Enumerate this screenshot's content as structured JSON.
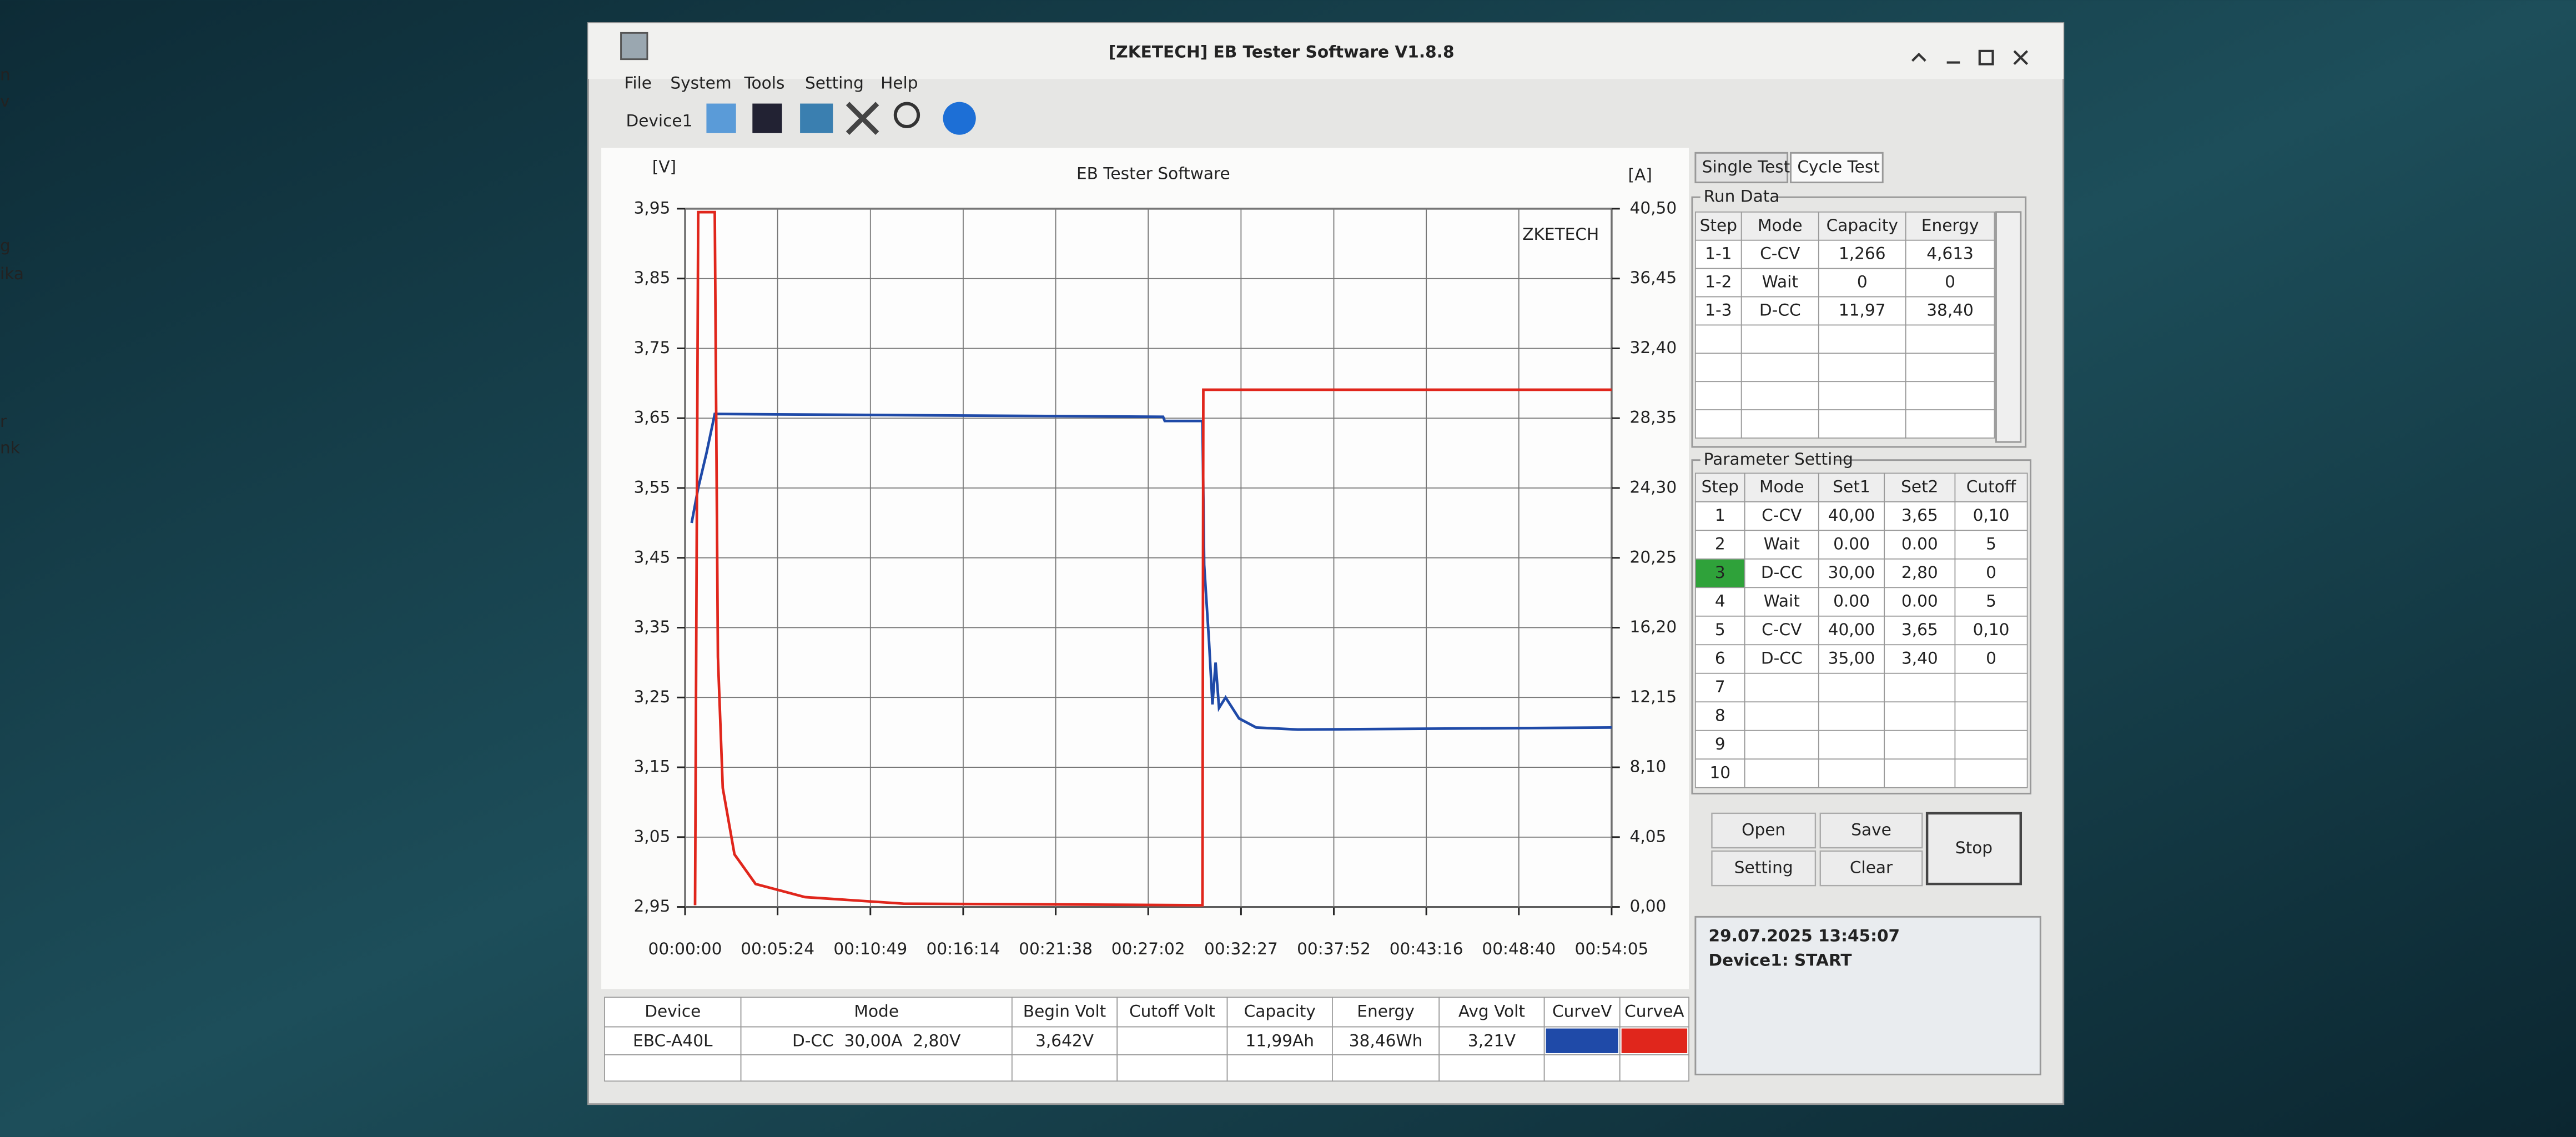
{
  "window": {
    "title": "[ZKETECH] EB Tester Software V1.8.8",
    "menu": [
      "File",
      "System",
      "Tools",
      "Setting",
      "Help"
    ],
    "device": "Device1"
  },
  "desktop_fragments": [
    "n",
    "v",
    "g",
    "ika",
    "r",
    "nk"
  ],
  "chart_data": {
    "type": "line",
    "title": "EB Tester Software",
    "y_label": "[V]",
    "y2_label": "[A]",
    "watermark": "ZKETECH",
    "xlim": [
      0,
      3245
    ],
    "xticks": [
      {
        "value": 0,
        "label": "00:00:00"
      },
      {
        "value": 324,
        "label": "00:05:24"
      },
      {
        "value": 649,
        "label": "00:10:49"
      },
      {
        "value": 974,
        "label": "00:16:14"
      },
      {
        "value": 1298,
        "label": "00:21:38"
      },
      {
        "value": 1622,
        "label": "00:27:02"
      },
      {
        "value": 1947,
        "label": "00:32:27"
      },
      {
        "value": 2272,
        "label": "00:37:52"
      },
      {
        "value": 2596,
        "label": "00:43:16"
      },
      {
        "value": 2920,
        "label": "00:48:40"
      },
      {
        "value": 3245,
        "label": "00:54:05"
      }
    ],
    "ylim": [
      2.95,
      3.95
    ],
    "yticks": [
      {
        "value": 2.95,
        "label": "2,95"
      },
      {
        "value": 3.05,
        "label": "3,05"
      },
      {
        "value": 3.15,
        "label": "3,15"
      },
      {
        "value": 3.25,
        "label": "3,25"
      },
      {
        "value": 3.35,
        "label": "3,35"
      },
      {
        "value": 3.45,
        "label": "3,45"
      },
      {
        "value": 3.55,
        "label": "3,55"
      },
      {
        "value": 3.65,
        "label": "3,65"
      },
      {
        "value": 3.75,
        "label": "3,75"
      },
      {
        "value": 3.85,
        "label": "3,85"
      },
      {
        "value": 3.95,
        "label": "3,95"
      }
    ],
    "y2lim": [
      0,
      40.5
    ],
    "y2ticks": [
      {
        "value": 0,
        "label": "0,00"
      },
      {
        "value": 4.05,
        "label": "4,05"
      },
      {
        "value": 8.1,
        "label": "8,10"
      },
      {
        "value": 12.15,
        "label": "12,15"
      },
      {
        "value": 16.2,
        "label": "16,20"
      },
      {
        "value": 20.25,
        "label": "20,25"
      },
      {
        "value": 24.3,
        "label": "24,30"
      },
      {
        "value": 28.35,
        "label": "28,35"
      },
      {
        "value": 32.4,
        "label": "32,40"
      },
      {
        "value": 36.45,
        "label": "36,45"
      },
      {
        "value": 40.5,
        "label": "40,50"
      }
    ],
    "grid": true,
    "series": [
      {
        "name": "CurveV",
        "color": "#1f4aa8",
        "x": [
          23,
          46,
          75,
          104,
          1674,
          1680,
          1812,
          1818,
          1835,
          1847,
          1858,
          1870,
          1893,
          1940,
          2000,
          2146,
          3245
        ],
        "values": [
          3.5,
          3.55,
          3.6,
          3.656,
          3.652,
          3.646,
          3.646,
          3.44,
          3.33,
          3.24,
          3.3,
          3.235,
          3.25,
          3.22,
          3.207,
          3.204,
          3.207
        ]
      },
      {
        "name": "CurveA",
        "color": "#e0261c",
        "axis": "y2",
        "x": [
          35,
          46,
          104,
          115,
          132,
          173,
          247,
          420,
          765,
          1812,
          1815,
          3245
        ],
        "values": [
          0.1,
          40.3,
          40.3,
          14.5,
          6.9,
          3.05,
          1.33,
          0.57,
          0.19,
          0.1,
          30.0,
          30.0
        ]
      }
    ]
  },
  "tabs": [
    "Single Test",
    "Cycle Test"
  ],
  "run_data": {
    "title": "Run Data",
    "headers": [
      "Step",
      "Mode",
      "Capacity",
      "Energy"
    ],
    "rows": [
      [
        "1-1",
        "C-CV",
        "1,266",
        "4,613"
      ],
      [
        "1-2",
        "Wait",
        "0",
        "0"
      ],
      [
        "1-3",
        "D-CC",
        "11,97",
        "38,40"
      ]
    ]
  },
  "parameter_setting": {
    "title": "Parameter Setting",
    "headers": [
      "Step",
      "Mode",
      "Set1",
      "Set2",
      "Cutoff"
    ],
    "active_row": 2,
    "rows": [
      [
        "1",
        "C-CV",
        "40,00",
        "3,65",
        "0,10"
      ],
      [
        "2",
        "Wait",
        "0.00",
        "0.00",
        "5"
      ],
      [
        "3",
        "D-CC",
        "30,00",
        "2,80",
        "0"
      ],
      [
        "4",
        "Wait",
        "0.00",
        "0.00",
        "5"
      ],
      [
        "5",
        "C-CV",
        "40,00",
        "3,65",
        "0,10"
      ],
      [
        "6",
        "D-CC",
        "35,00",
        "3,40",
        "0"
      ],
      [
        "7"
      ],
      [
        "8"
      ],
      [
        "9"
      ],
      [
        "10"
      ]
    ]
  },
  "buttons": [
    "Open",
    "Save",
    "Setting",
    "Clear",
    "Stop"
  ],
  "log": [
    "29.07.2025 13:45:07",
    "Device1: START"
  ],
  "status_table": {
    "headers": [
      "Device",
      "Mode",
      "Begin Volt",
      "Cutoff Volt",
      "Capacity",
      "Energy",
      "Avg Volt"
    ],
    "row": {
      "device": "EBC-A40L",
      "mode": "D-CC  30,00A  2,80V",
      "begin_volt": "3,642V",
      "capacity": "11,99Ah",
      "energy": "38,46Wh",
      "avg_volt": "3,21V"
    }
  }
}
